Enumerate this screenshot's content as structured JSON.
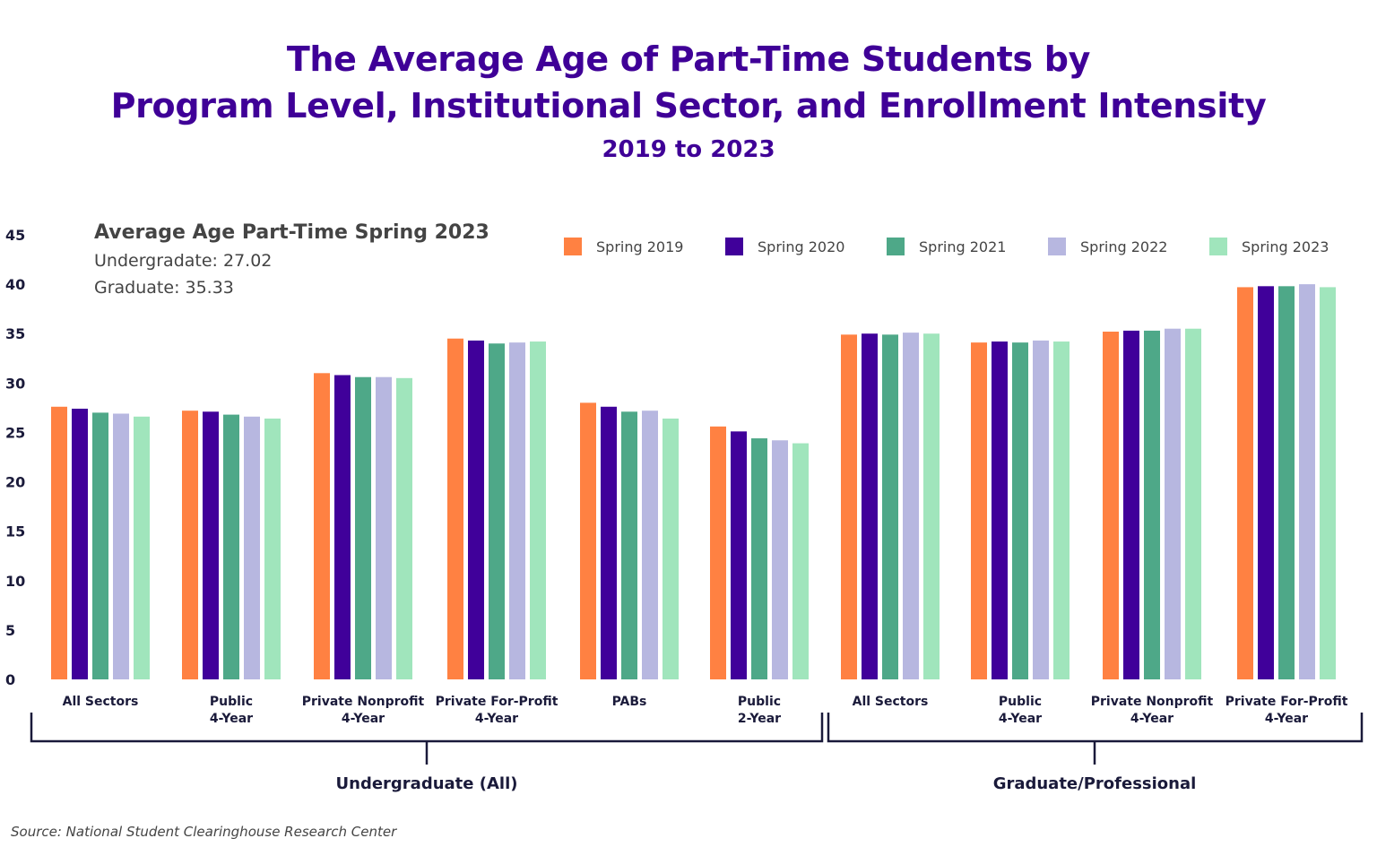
{
  "title": {
    "line1": "The Average Age of Part-Time Students by",
    "line2": "Program Level, Institutional Sector, and Enrollment Intensity",
    "subtitle": "2019 to 2023"
  },
  "callout": {
    "title": "Average Age Part-Time Spring 2023",
    "undergrad": "Undergradate: 27.02",
    "graduate": "Graduate: 35.33"
  },
  "source": "Source: National Student Clearinghouse Research Center",
  "chart_data": {
    "type": "bar",
    "ylim": [
      0,
      45
    ],
    "yticks": [
      0,
      5,
      10,
      15,
      20,
      25,
      30,
      35,
      40,
      45
    ],
    "grid": false,
    "legend_position": "top-right",
    "categories": [
      [
        "All Sectors"
      ],
      [
        "Public",
        "4-Year"
      ],
      [
        "Private Nonprofit",
        "4-Year"
      ],
      [
        "Private For-Profit",
        "4-Year"
      ],
      [
        "PABs"
      ],
      [
        "Public",
        "2-Year"
      ],
      [
        "All Sectors"
      ],
      [
        "Public",
        "4-Year"
      ],
      [
        "Private Nonprofit",
        "4-Year"
      ],
      [
        "Private For-Profit",
        "4-Year"
      ]
    ],
    "groups": [
      {
        "label": "Undergraduate (All)",
        "start": 0,
        "end": 5
      },
      {
        "label": "Graduate/Professional",
        "start": 6,
        "end": 9
      }
    ],
    "series": [
      {
        "name": "Spring 2019",
        "color": "#ff8142",
        "values": [
          27.6,
          27.2,
          31.0,
          34.5,
          28.0,
          25.6,
          34.9,
          34.1,
          35.2,
          39.7
        ]
      },
      {
        "name": "Spring 2020",
        "color": "#40009a",
        "values": [
          27.4,
          27.1,
          30.8,
          34.3,
          27.6,
          25.1,
          35.0,
          34.2,
          35.3,
          39.8
        ]
      },
      {
        "name": "Spring 2021",
        "color": "#4ea888",
        "values": [
          27.0,
          26.8,
          30.6,
          34.0,
          27.1,
          24.4,
          34.9,
          34.1,
          35.3,
          39.8
        ]
      },
      {
        "name": "Spring 2022",
        "color": "#b7b7e0",
        "values": [
          26.9,
          26.6,
          30.6,
          34.1,
          27.2,
          24.2,
          35.1,
          34.3,
          35.5,
          40.0
        ]
      },
      {
        "name": "Spring 2023",
        "color": "#a0e5bc",
        "values": [
          26.6,
          26.4,
          30.5,
          34.2,
          26.4,
          23.9,
          35.0,
          34.2,
          35.5,
          39.7
        ]
      }
    ]
  }
}
